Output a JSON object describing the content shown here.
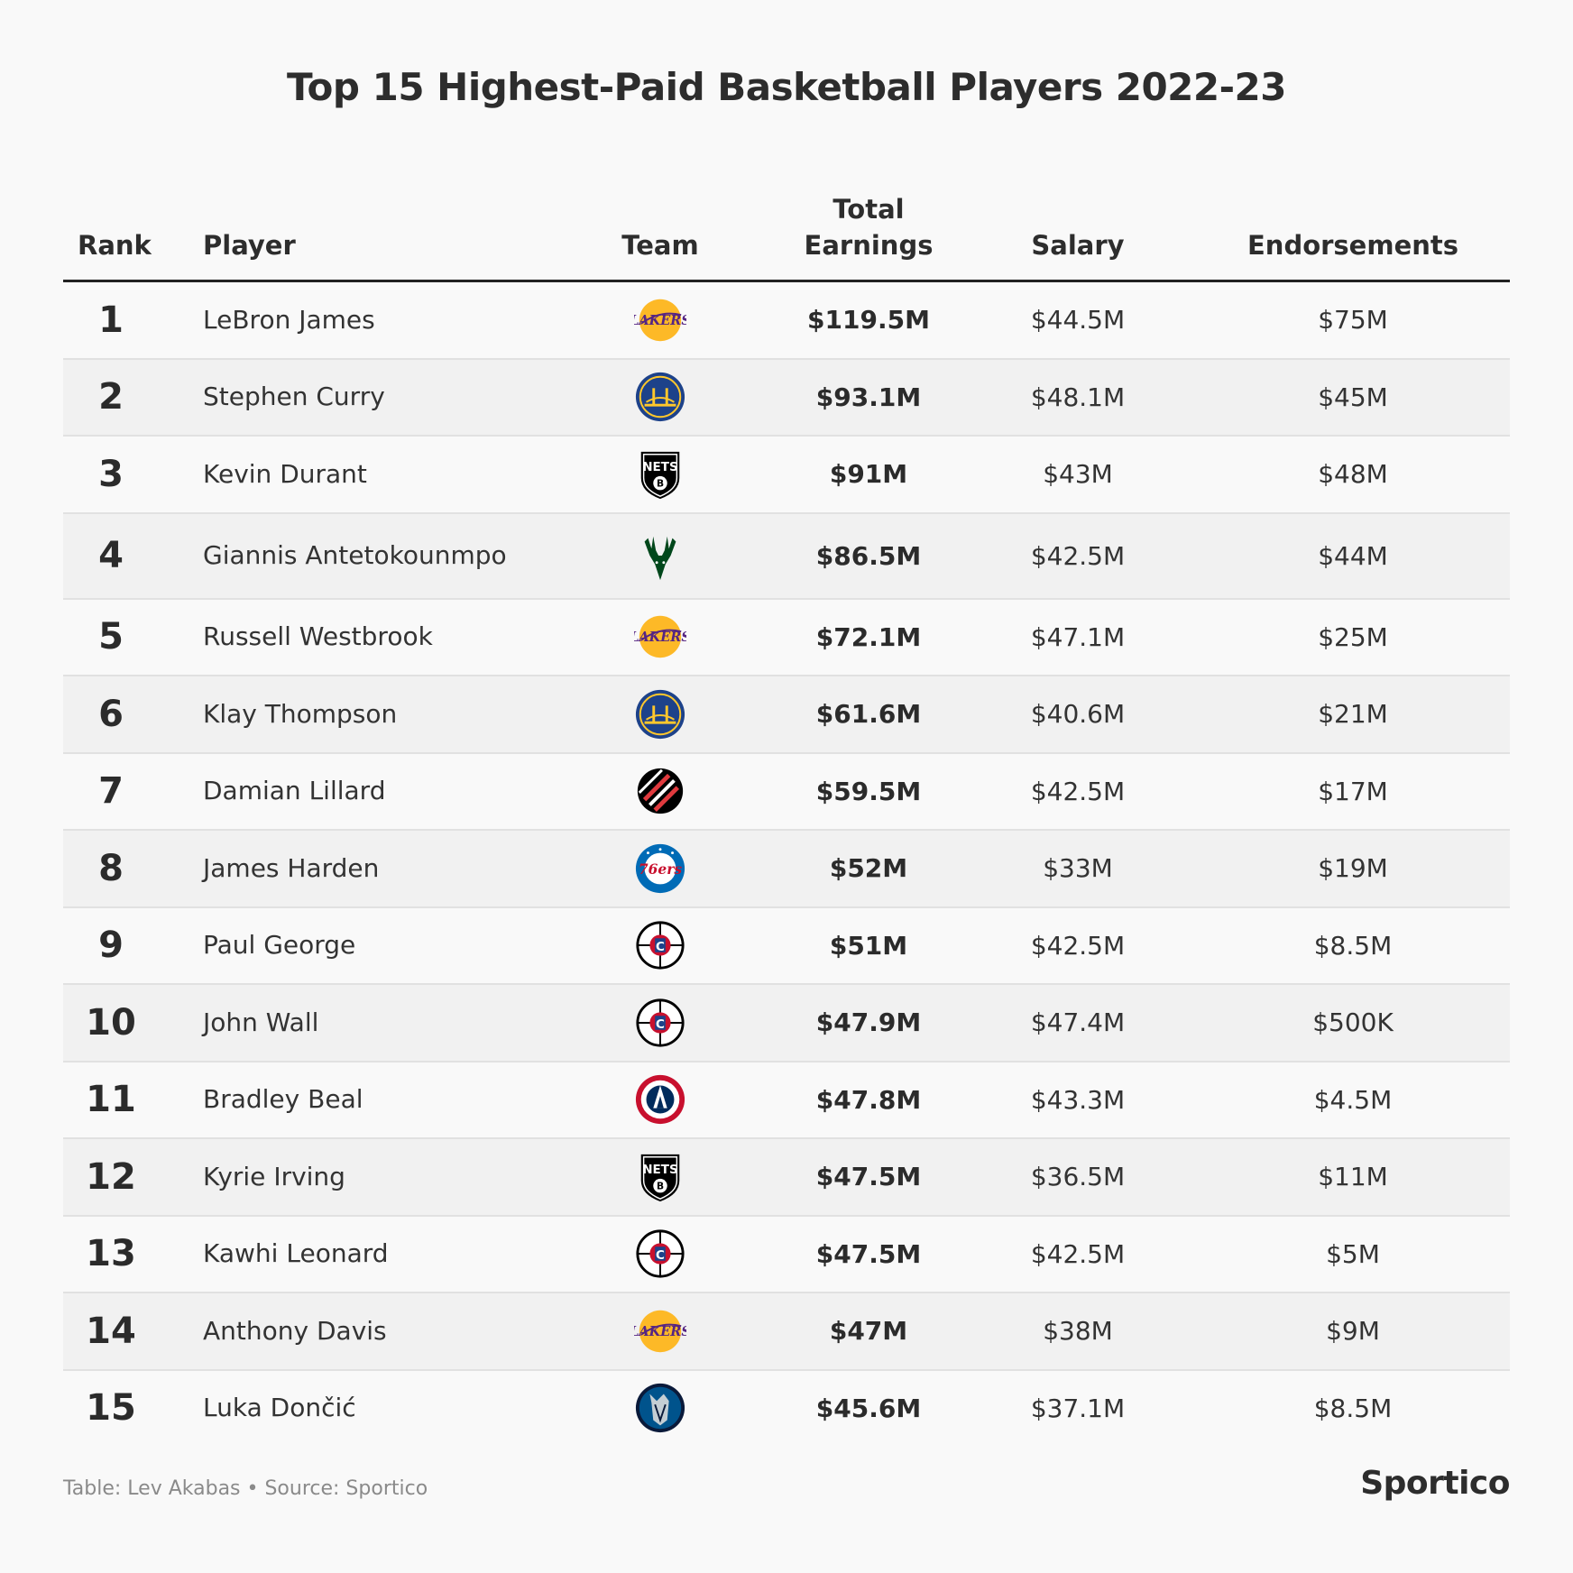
{
  "title": "Top 15 Highest-Paid Basketball Players 2022-23",
  "columns": {
    "rank": "Rank",
    "player": "Player",
    "team": "Team",
    "total_line1": "Total",
    "total_line2": "Earnings",
    "salary": "Salary",
    "endorsements": "Endorsements"
  },
  "footer": {
    "source": "Table: Lev Akabas • Source: Sportico",
    "brand": "Sportico"
  },
  "colors": {
    "lakers_purple": "#552583",
    "lakers_gold": "#FDB927",
    "warriors_blue": "#1D428A",
    "warriors_gold": "#FFC72C",
    "bucks_green": "#00471B",
    "blazers_red": "#E03A3E",
    "sixers_blue": "#006BB6",
    "clippers_red": "#C8102E",
    "wizards_navy": "#002B5C",
    "mavs_blue": "#00538C"
  },
  "team_logos": {
    "lakers": "lakers-logo-icon",
    "warriors": "warriors-logo-icon",
    "nets": "nets-logo-icon",
    "bucks": "bucks-logo-icon",
    "blazers": "trail-blazers-logo-icon",
    "sixers": "76ers-logo-icon",
    "clippers": "clippers-logo-icon",
    "wizards": "wizards-logo-icon",
    "mavericks": "mavericks-logo-icon"
  },
  "chart_data": {
    "type": "table",
    "title": "Top 15 Highest-Paid Basketball Players 2022-23",
    "columns": [
      "Rank",
      "Player",
      "Team",
      "Total Earnings",
      "Salary",
      "Endorsements"
    ],
    "rows": [
      {
        "rank": "1",
        "player": "LeBron James",
        "team": "lakers",
        "total": "$119.5M",
        "salary": "$44.5M",
        "endorsements": "$75M"
      },
      {
        "rank": "2",
        "player": "Stephen Curry",
        "team": "warriors",
        "total": "$93.1M",
        "salary": "$48.1M",
        "endorsements": "$45M"
      },
      {
        "rank": "3",
        "player": "Kevin Durant",
        "team": "nets",
        "total": "$91M",
        "salary": "$43M",
        "endorsements": "$48M"
      },
      {
        "rank": "4",
        "player": "Giannis Antetokounmpo",
        "team": "bucks",
        "total": "$86.5M",
        "salary": "$42.5M",
        "endorsements": "$44M"
      },
      {
        "rank": "5",
        "player": "Russell Westbrook",
        "team": "lakers",
        "total": "$72.1M",
        "salary": "$47.1M",
        "endorsements": "$25M"
      },
      {
        "rank": "6",
        "player": "Klay Thompson",
        "team": "warriors",
        "total": "$61.6M",
        "salary": "$40.6M",
        "endorsements": "$21M"
      },
      {
        "rank": "7",
        "player": "Damian Lillard",
        "team": "blazers",
        "total": "$59.5M",
        "salary": "$42.5M",
        "endorsements": "$17M"
      },
      {
        "rank": "8",
        "player": "James Harden",
        "team": "sixers",
        "total": "$52M",
        "salary": "$33M",
        "endorsements": "$19M"
      },
      {
        "rank": "9",
        "player": "Paul George",
        "team": "clippers",
        "total": "$51M",
        "salary": "$42.5M",
        "endorsements": "$8.5M"
      },
      {
        "rank": "10",
        "player": "John Wall",
        "team": "clippers",
        "total": "$47.9M",
        "salary": "$47.4M",
        "endorsements": "$500K"
      },
      {
        "rank": "11",
        "player": "Bradley Beal",
        "team": "wizards",
        "total": "$47.8M",
        "salary": "$43.3M",
        "endorsements": "$4.5M"
      },
      {
        "rank": "12",
        "player": "Kyrie Irving",
        "team": "nets",
        "total": "$47.5M",
        "salary": "$36.5M",
        "endorsements": "$11M"
      },
      {
        "rank": "13",
        "player": "Kawhi Leonard",
        "team": "clippers",
        "total": "$47.5M",
        "salary": "$42.5M",
        "endorsements": "$5M"
      },
      {
        "rank": "14",
        "player": "Anthony Davis",
        "team": "lakers",
        "total": "$47M",
        "salary": "$38M",
        "endorsements": "$9M"
      },
      {
        "rank": "15",
        "player": "Luka Dončić",
        "team": "mavericks",
        "total": "$45.6M",
        "salary": "$37.1M",
        "endorsements": "$8.5M"
      }
    ]
  }
}
